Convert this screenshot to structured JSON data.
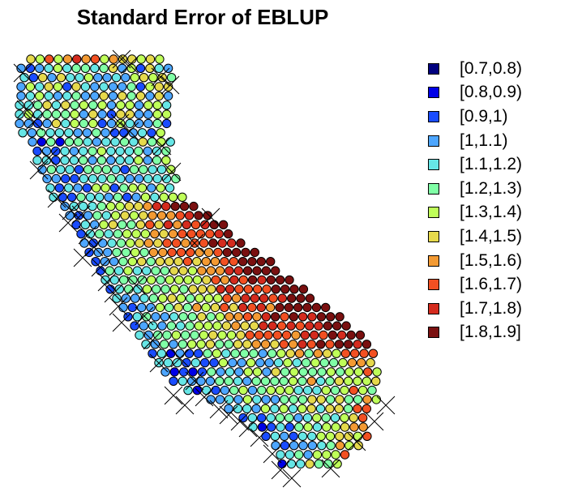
{
  "title": "Standard Error of EBLUP",
  "legend": [
    {
      "label": "[0.7,0.8)",
      "color": "#00007f"
    },
    {
      "label": "[0.8,0.9)",
      "color": "#0000e6"
    },
    {
      "label": "[0.9,1)",
      "color": "#1a4cff"
    },
    {
      "label": "[1,1.1)",
      "color": "#4da6ff"
    },
    {
      "label": "[1.1,1.2)",
      "color": "#66e6e6"
    },
    {
      "label": "[1.2,1.3)",
      "color": "#80ffa6"
    },
    {
      "label": "[1.3,1.4)",
      "color": "#bfff59"
    },
    {
      "label": "[1.4,1.5)",
      "color": "#e6d94c"
    },
    {
      "label": "[1.5,1.6)",
      "color": "#f39a33"
    },
    {
      "label": "[1.6,1.7)",
      "color": "#f25022"
    },
    {
      "label": "[1.7,1.8)",
      "color": "#d42b1e"
    },
    {
      "label": "[1.8,1.9]",
      "color": "#7a1010"
    }
  ]
}
